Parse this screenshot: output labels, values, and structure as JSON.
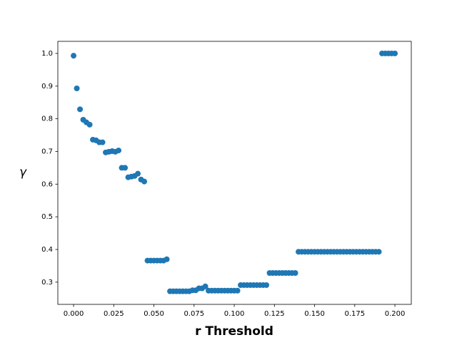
{
  "chart_data": {
    "type": "scatter",
    "xlabel": "r Threshold",
    "ylabel": "γ",
    "color": "#1f77b4",
    "x": [
      0,
      0.002,
      0.004,
      0.006,
      0.008,
      0.01,
      0.012,
      0.014,
      0.016,
      0.018,
      0.02,
      0.022,
      0.024,
      0.026,
      0.028,
      0.03,
      0.032,
      0.034,
      0.036,
      0.038,
      0.04,
      0.042,
      0.044,
      0.046,
      0.048,
      0.05,
      0.052,
      0.054,
      0.056,
      0.058,
      0.06,
      0.062,
      0.064,
      0.066,
      0.068,
      0.07,
      0.072,
      0.074,
      0.076,
      0.078,
      0.08,
      0.082,
      0.084,
      0.086,
      0.088,
      0.09,
      0.092,
      0.094,
      0.096,
      0.098,
      0.1,
      0.102,
      0.104,
      0.106,
      0.108,
      0.11,
      0.112,
      0.114,
      0.116,
      0.118,
      0.12,
      0.122,
      0.124,
      0.126,
      0.128,
      0.13,
      0.132,
      0.134,
      0.136,
      0.138,
      0.14,
      0.142,
      0.144,
      0.146,
      0.148,
      0.15,
      0.152,
      0.154,
      0.156,
      0.158,
      0.16,
      0.162,
      0.164,
      0.166,
      0.168,
      0.17,
      0.172,
      0.174,
      0.176,
      0.178,
      0.18,
      0.182,
      0.184,
      0.186,
      0.188,
      0.19,
      0.192,
      0.194,
      0.196,
      0.198,
      0.2
    ],
    "values": [
      0.993,
      0.893,
      0.829,
      0.797,
      0.789,
      0.782,
      0.736,
      0.734,
      0.728,
      0.728,
      0.697,
      0.699,
      0.701,
      0.699,
      0.703,
      0.65,
      0.65,
      0.621,
      0.623,
      0.625,
      0.632,
      0.614,
      0.608,
      0.366,
      0.366,
      0.366,
      0.366,
      0.366,
      0.366,
      0.37,
      0.272,
      0.272,
      0.272,
      0.272,
      0.272,
      0.272,
      0.272,
      0.275,
      0.275,
      0.281,
      0.281,
      0.287,
      0.274,
      0.274,
      0.274,
      0.274,
      0.274,
      0.274,
      0.274,
      0.274,
      0.274,
      0.274,
      0.291,
      0.291,
      0.291,
      0.291,
      0.291,
      0.291,
      0.291,
      0.291,
      0.291,
      0.328,
      0.328,
      0.328,
      0.328,
      0.328,
      0.328,
      0.328,
      0.328,
      0.328,
      0.393,
      0.393,
      0.393,
      0.393,
      0.393,
      0.393,
      0.393,
      0.393,
      0.393,
      0.393,
      0.393,
      0.393,
      0.393,
      0.393,
      0.393,
      0.393,
      0.393,
      0.393,
      0.393,
      0.393,
      0.393,
      0.393,
      0.393,
      0.393,
      0.393,
      0.393,
      1.0,
      1.0,
      1.0,
      1.0,
      1.0
    ],
    "xlim": [
      -0.0098,
      0.2102
    ],
    "ylim": [
      0.232,
      1.037
    ],
    "xticks": [
      {
        "value": 0,
        "label": "0.000"
      },
      {
        "value": 0.025,
        "label": "0.025"
      },
      {
        "value": 0.05,
        "label": "0.050"
      },
      {
        "value": 0.075,
        "label": "0.075"
      },
      {
        "value": 0.1,
        "label": "0.100"
      },
      {
        "value": 0.125,
        "label": "0.125"
      },
      {
        "value": 0.15,
        "label": "0.150"
      },
      {
        "value": 0.175,
        "label": "0.175"
      },
      {
        "value": 0.2,
        "label": "0.200"
      }
    ],
    "yticks": [
      0.3,
      0.4,
      0.5,
      0.6,
      0.7,
      0.8,
      0.9,
      {
        "value": 1,
        "label": "1.0"
      }
    ]
  }
}
